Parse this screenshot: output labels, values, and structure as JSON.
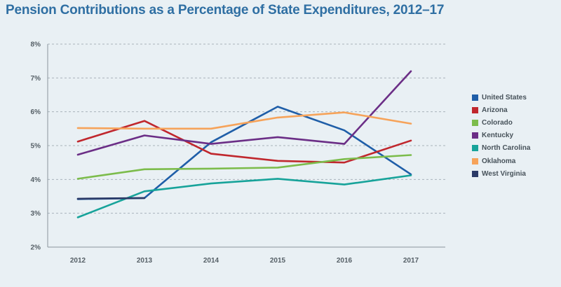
{
  "chart_data": {
    "type": "line",
    "title": "Pension Contributions as a Percentage of State Expenditures, 2012–17",
    "xlabel": "",
    "ylabel": "",
    "x": [
      "2012",
      "2013",
      "2014",
      "2015",
      "2016",
      "2017"
    ],
    "ylim": [
      2,
      8
    ],
    "yticks": [
      "2%",
      "3%",
      "4%",
      "5%",
      "6%",
      "7%",
      "8%"
    ],
    "grid": "horizontal-dashed",
    "legend_position": "right",
    "series": [
      {
        "name": "United States",
        "color": "#1f5ea8",
        "values": [
          3.42,
          3.45,
          5.1,
          6.15,
          5.45,
          4.15
        ]
      },
      {
        "name": "Arizona",
        "color": "#c0272d",
        "values": [
          5.12,
          5.73,
          4.76,
          4.55,
          4.5,
          5.15
        ]
      },
      {
        "name": "Colorado",
        "color": "#7cbc4b",
        "values": [
          4.02,
          4.3,
          4.32,
          4.35,
          4.6,
          4.72
        ]
      },
      {
        "name": "Kentucky",
        "color": "#6b2e86",
        "values": [
          4.73,
          5.3,
          5.05,
          5.25,
          5.05,
          7.2
        ]
      },
      {
        "name": "North Carolina",
        "color": "#17a39a",
        "values": [
          2.88,
          3.65,
          3.88,
          4.02,
          3.85,
          4.12
        ]
      },
      {
        "name": "Oklahoma",
        "color": "#f6a35a",
        "values": [
          5.52,
          5.5,
          5.5,
          5.83,
          5.98,
          5.65
        ]
      },
      {
        "name": "West Virginia",
        "color": "#2b3a67",
        "values": [
          3.43,
          3.45,
          null,
          null,
          null,
          null
        ]
      }
    ]
  }
}
